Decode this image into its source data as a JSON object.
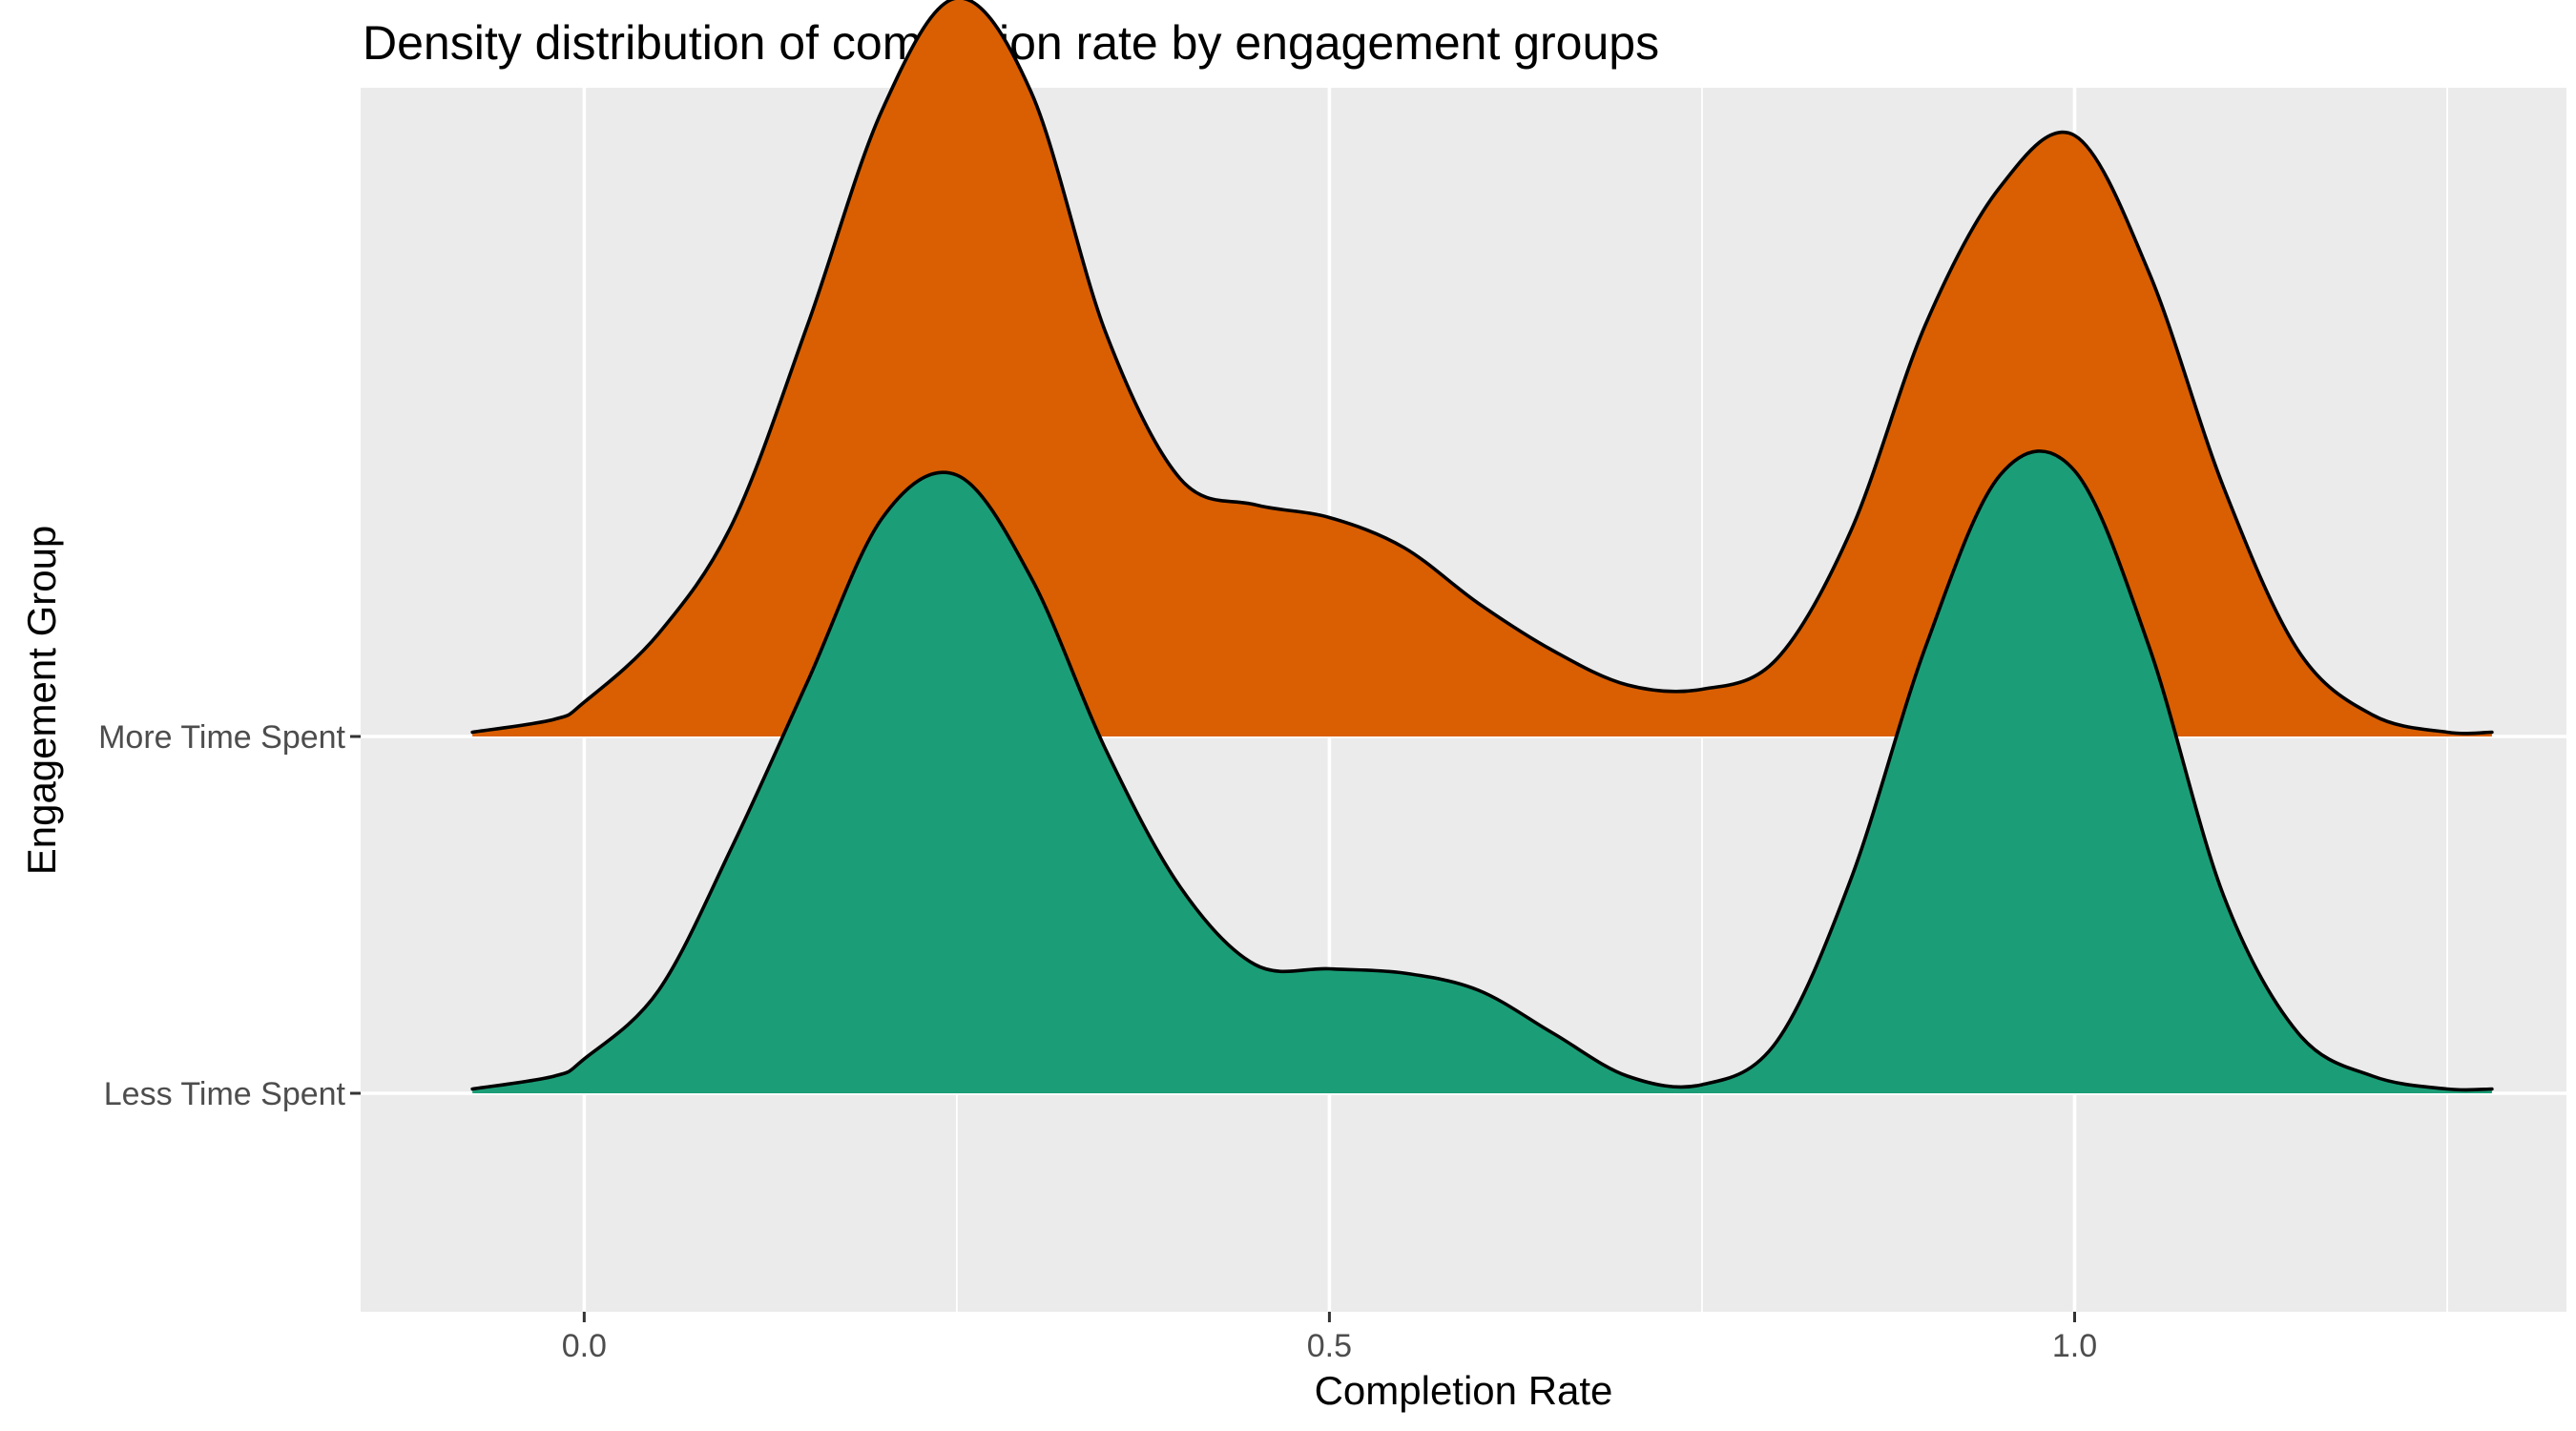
{
  "chart_data": {
    "type": "area",
    "subtype": "ridgeline-density",
    "title": "Density distribution of completion rate by engagement groups",
    "xlabel": "Completion Rate",
    "ylabel": "Engagement Group",
    "xlim": [
      -0.15,
      1.33
    ],
    "x_ticks": [
      0.0,
      0.5,
      1.0
    ],
    "x_tick_labels": [
      "0.0",
      "0.5",
      "1.0"
    ],
    "x_minor_ticks": [
      0.25,
      0.75,
      1.25
    ],
    "grid": true,
    "legend": "none",
    "panel_background": "#ebebeb",
    "grid_color": "#ffffff",
    "outline_color": "#000000",
    "categories": [
      "Less Time Spent",
      "More Time Spent"
    ],
    "series": [
      {
        "name": "Less Time Spent",
        "color": "#1b9e77",
        "x": [
          -0.075,
          -0.02,
          0.0,
          0.05,
          0.1,
          0.15,
          0.2,
          0.25,
          0.3,
          0.35,
          0.4,
          0.45,
          0.5,
          0.55,
          0.6,
          0.65,
          0.7,
          0.75,
          0.8,
          0.85,
          0.9,
          0.95,
          1.0,
          1.05,
          1.1,
          1.15,
          1.2,
          1.25,
          1.28
        ],
        "y": [
          0.01,
          0.04,
          0.08,
          0.24,
          0.58,
          0.96,
          1.34,
          1.44,
          1.2,
          0.8,
          0.48,
          0.3,
          0.29,
          0.28,
          0.24,
          0.14,
          0.04,
          0.02,
          0.12,
          0.5,
          1.04,
          1.44,
          1.45,
          1.04,
          0.46,
          0.14,
          0.04,
          0.01,
          0.01
        ]
      },
      {
        "name": "More Time Spent",
        "color": "#d95f02",
        "x": [
          -0.075,
          -0.02,
          0.0,
          0.05,
          0.1,
          0.15,
          0.2,
          0.25,
          0.3,
          0.35,
          0.4,
          0.45,
          0.5,
          0.55,
          0.6,
          0.65,
          0.7,
          0.75,
          0.8,
          0.85,
          0.9,
          0.95,
          1.0,
          1.05,
          1.1,
          1.15,
          1.2,
          1.25,
          1.28
        ],
        "y": [
          0.01,
          0.04,
          0.08,
          0.24,
          0.5,
          0.96,
          1.46,
          1.72,
          1.5,
          0.94,
          0.6,
          0.54,
          0.51,
          0.44,
          0.31,
          0.2,
          0.12,
          0.11,
          0.18,
          0.48,
          0.96,
          1.28,
          1.4,
          1.08,
          0.58,
          0.2,
          0.05,
          0.01,
          0.01
        ]
      }
    ],
    "y_scale": 1.0
  }
}
